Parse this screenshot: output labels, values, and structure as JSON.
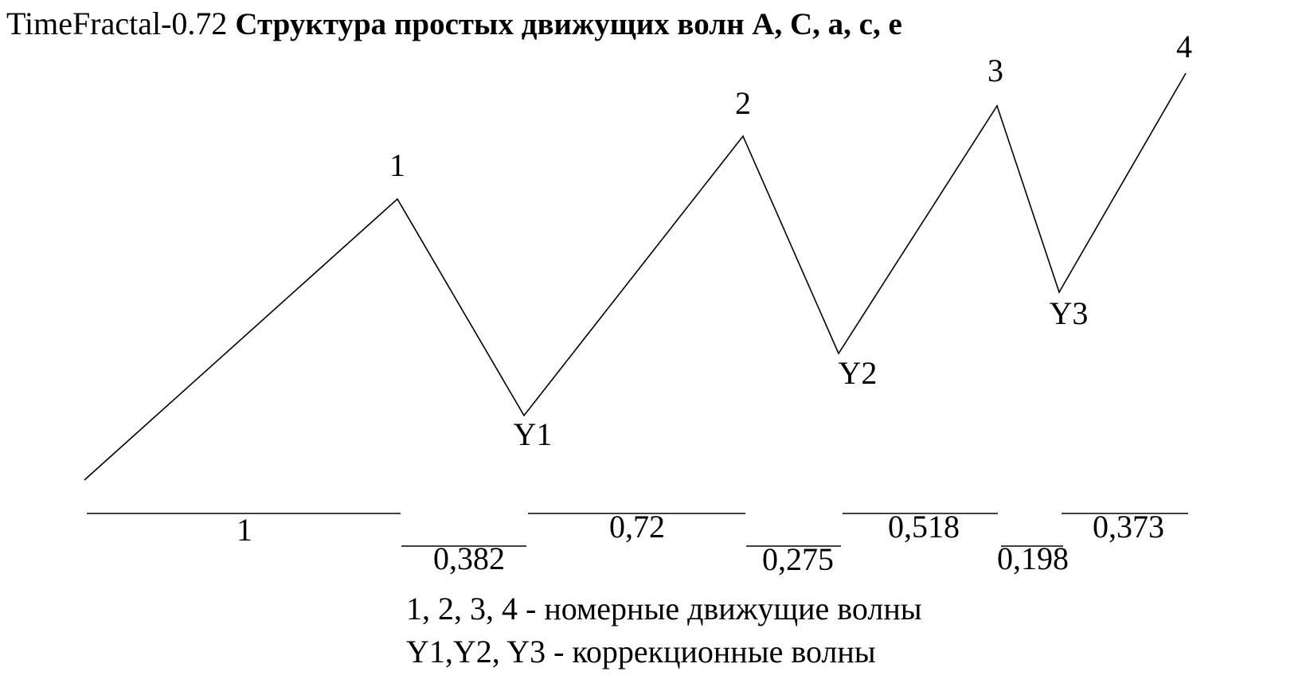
{
  "header": {
    "prefix": "TimeFractal-0.72",
    "title": "Структура простых движущих волн A, C, a, c, e"
  },
  "nodes": [
    {
      "label": "1"
    },
    {
      "label": "Y1"
    },
    {
      "label": "2"
    },
    {
      "label": "Y2"
    },
    {
      "label": "3"
    },
    {
      "label": "Y3"
    },
    {
      "label": "4"
    }
  ],
  "segments": [
    {
      "label": "1"
    },
    {
      "label": "0,382"
    },
    {
      "label": "0,72"
    },
    {
      "label": "0,275"
    },
    {
      "label": "0,518"
    },
    {
      "label": "0,198"
    },
    {
      "label": "0,373"
    }
  ],
  "legend": [
    "1, 2, 3, 4 - номерные движущие волны",
    "Y1,Y2, Y3 - коррекционные волны"
  ]
}
